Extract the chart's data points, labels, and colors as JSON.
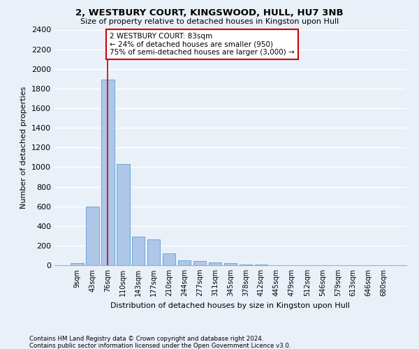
{
  "title": "2, WESTBURY COURT, KINGSWOOD, HULL, HU7 3NB",
  "subtitle": "Size of property relative to detached houses in Kingston upon Hull",
  "xlabel_bottom": "Distribution of detached houses by size in Kingston upon Hull",
  "ylabel": "Number of detached properties",
  "footnote1": "Contains HM Land Registry data © Crown copyright and database right 2024.",
  "footnote2": "Contains public sector information licensed under the Open Government Licence v3.0.",
  "bar_labels": [
    "9sqm",
    "43sqm",
    "76sqm",
    "110sqm",
    "143sqm",
    "177sqm",
    "210sqm",
    "244sqm",
    "277sqm",
    "311sqm",
    "345sqm",
    "378sqm",
    "412sqm",
    "445sqm",
    "479sqm",
    "512sqm",
    "546sqm",
    "579sqm",
    "613sqm",
    "646sqm",
    "680sqm"
  ],
  "bar_values": [
    20,
    600,
    1890,
    1030,
    290,
    260,
    120,
    50,
    45,
    28,
    20,
    10,
    5,
    3,
    2,
    1,
    1,
    0,
    0,
    0,
    0
  ],
  "bar_color": "#aec6e8",
  "bar_edge_color": "#5a9fd4",
  "annotation_box_text": "2 WESTBURY COURT: 83sqm\n← 24% of detached houses are smaller (950)\n75% of semi-detached houses are larger (3,000) →",
  "annotation_box_color": "#ffffff",
  "annotation_box_edge_color": "#cc0000",
  "annotation_line_color": "#cc0000",
  "bg_color": "#eaf0f8",
  "grid_color": "#ffffff",
  "ylim": [
    0,
    2400
  ],
  "yticks": [
    0,
    200,
    400,
    600,
    800,
    1000,
    1200,
    1400,
    1600,
    1800,
    2000,
    2200,
    2400
  ]
}
